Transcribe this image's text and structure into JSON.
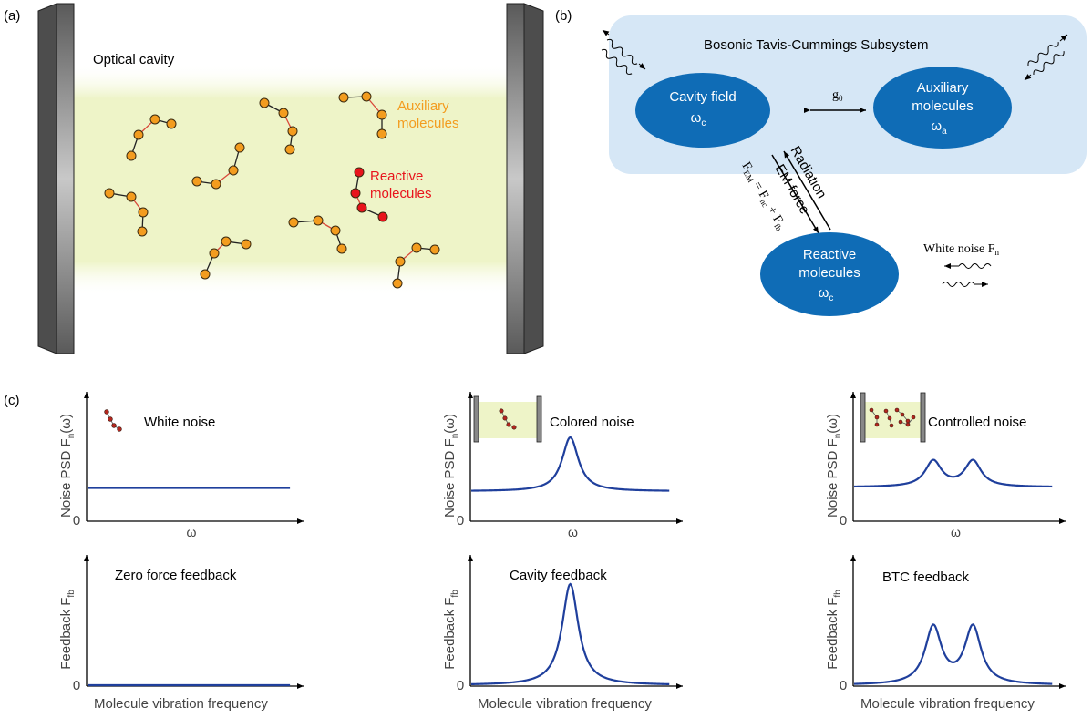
{
  "panels": {
    "a": {
      "label": "(a)",
      "cavity_label": "Optical cavity",
      "aux_label_1": "Auxiliary",
      "aux_label_2": "molecules",
      "reactive_label_1": "Reactive",
      "reactive_label_2": "molecules"
    },
    "b": {
      "label": "(b)",
      "subsystem_title": "Bosonic Tavis-Cummings Subsystem",
      "cavity_field": "Cavity field",
      "cavity_freq": "ω",
      "cavity_freq_sub": "c",
      "aux_1": "Auxiliary",
      "aux_2": "molecules",
      "aux_freq": "ω",
      "aux_freq_sub": "a",
      "coupling": "g",
      "coupling_sub": "0",
      "radiation": "Radiation",
      "em_force": "EM force",
      "fem_eq": {
        "F": "F",
        "EM": "EM",
        "eq": " = F",
        "nc": "nc",
        "plus": " + F",
        "fb": "fb"
      },
      "reactive_1": "Reactive",
      "reactive_2": "molecules",
      "reactive_freq": "ω",
      "reactive_freq_sub": "c",
      "white_noise": "White noise F",
      "white_noise_sub": "n"
    },
    "c": {
      "label": "(c)",
      "noise_ylabel": "Noise PSD F",
      "noise_ylabel_sub": "n",
      "noise_ylabel_tail": "(ω)",
      "feedback_ylabel": "Feedback F",
      "feedback_ylabel_sub": "fb",
      "omega": "ω",
      "zero": "0",
      "xlabel": "Molecule vibration frequency",
      "white_noise": "White noise",
      "colored_noise": "Colored noise",
      "controlled_noise": "Controlled noise",
      "zero_feedback": "Zero force feedback",
      "cavity_feedback": "Cavity feedback",
      "btc_feedback": "BTC feedback"
    }
  },
  "colors": {
    "auxiliary": "#f39c1f",
    "reactive": "#e8141c",
    "ellipse": "#0f6cb6",
    "subsystem_box": "#d6e7f6",
    "curve": "#1f3f9c",
    "cavity_glow": "#edf3c6",
    "mirror": "#6b6b6b"
  },
  "chart_data": [
    {
      "type": "line",
      "title": "White noise",
      "ylabel": "Noise PSD Fn(ω)",
      "xlabel": "ω",
      "series": [
        {
          "shape": "flat",
          "level": 0.39
        }
      ]
    },
    {
      "type": "line",
      "title": "Colored noise",
      "ylabel": "Noise PSD Fn(ω)",
      "xlabel": "ω",
      "series": [
        {
          "shape": "single-peak",
          "baseline": 0.35,
          "peak": 1.0,
          "center": 0.5
        }
      ]
    },
    {
      "type": "line",
      "title": "Controlled noise",
      "ylabel": "Noise PSD Fn(ω)",
      "xlabel": "ω",
      "series": [
        {
          "shape": "double-peak",
          "baseline": 0.4,
          "peak": 0.73,
          "centers": [
            0.4,
            0.6
          ]
        }
      ]
    },
    {
      "type": "line",
      "title": "Zero force feedback",
      "ylabel": "Feedback Ffb",
      "xlabel": "Molecule vibration frequency",
      "series": [
        {
          "shape": "flat",
          "level": 0.0
        }
      ]
    },
    {
      "type": "line",
      "title": "Cavity feedback",
      "ylabel": "Feedback Ffb",
      "xlabel": "Molecule vibration frequency",
      "series": [
        {
          "shape": "single-peak",
          "baseline": 0.0,
          "peak": 1.0,
          "center": 0.5
        }
      ]
    },
    {
      "type": "line",
      "title": "BTC feedback",
      "ylabel": "Feedback Ffb",
      "xlabel": "Molecule vibration frequency",
      "series": [
        {
          "shape": "double-peak",
          "baseline": 0.0,
          "peak": 0.6,
          "centers": [
            0.4,
            0.6
          ]
        }
      ]
    }
  ]
}
